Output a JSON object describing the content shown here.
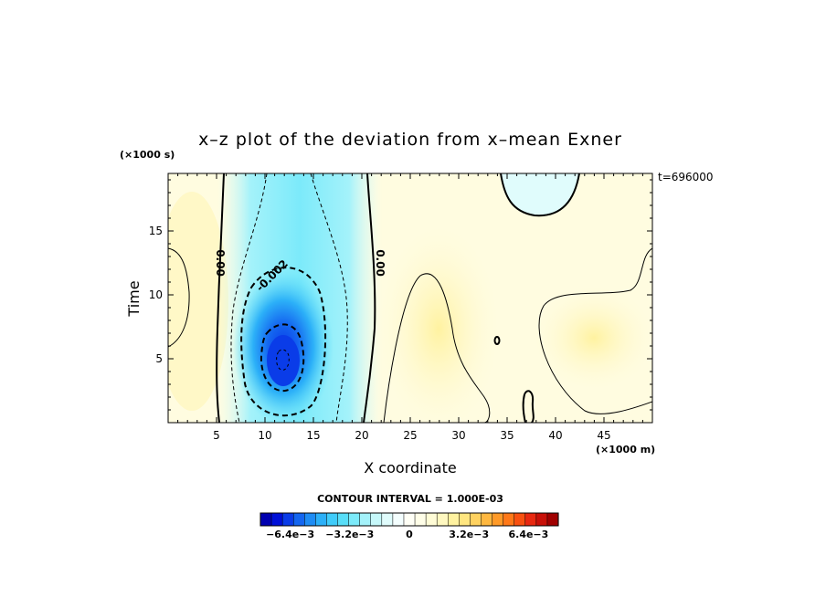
{
  "chart_data": {
    "type": "heatmap",
    "title": "x–z plot of the deviation from x–mean Exner",
    "xlabel": "X coordinate",
    "ylabel": "Time",
    "x_unit": "(×1000 m)",
    "y_unit": "(×1000 s)",
    "time_stamp": "t=696000",
    "xlim": [
      0,
      50
    ],
    "ylim": [
      0,
      19.5
    ],
    "x_ticks": [
      5,
      10,
      15,
      20,
      25,
      30,
      35,
      40,
      45
    ],
    "y_ticks": [
      5,
      10,
      15
    ],
    "contour_interval_text": "CONTOUR INTERVAL = 1.000E-03",
    "contour_labels": [
      {
        "text": "0.00",
        "x": 5.0,
        "y": 12.5
      },
      {
        "text": "-0.002",
        "x": 11.0,
        "y": 11.3
      },
      {
        "text": "0.00",
        "x": 21.5,
        "y": 12.5
      }
    ],
    "features": [
      {
        "kind": "minimum",
        "x": 12,
        "y": 5,
        "value": -0.0072
      },
      {
        "kind": "negative-band",
        "x_range": [
          6,
          21
        ],
        "y_range": [
          0,
          19.5
        ]
      },
      {
        "kind": "weak-negative",
        "x": 40,
        "y": 18.5
      },
      {
        "kind": "weak-positive",
        "x": 45,
        "y": 6
      }
    ],
    "colorbar": {
      "min": -0.008,
      "max": 0.008,
      "tick_labels": [
        "−6.4e−3",
        "−3.2e−3",
        "0",
        "3.2e−3",
        "6.4e−3"
      ],
      "tick_values": [
        -0.0064,
        -0.0032,
        0,
        0.0032,
        0.0064
      ],
      "colors": [
        "#0000b0",
        "#0010d8",
        "#0a3ce8",
        "#1466f0",
        "#1e8cf4",
        "#2cb0f8",
        "#40ccfa",
        "#58def8",
        "#7ceafa",
        "#a4f2fa",
        "#c6f8fa",
        "#e0fcfc",
        "#f4fefe",
        "#fffff6",
        "#fffee8",
        "#fffcd6",
        "#fff8c0",
        "#fff2a0",
        "#ffe680",
        "#ffd260",
        "#ffb840",
        "#ff9a28",
        "#ff7818",
        "#f85010",
        "#e82810",
        "#c81008",
        "#a00000"
      ]
    }
  }
}
